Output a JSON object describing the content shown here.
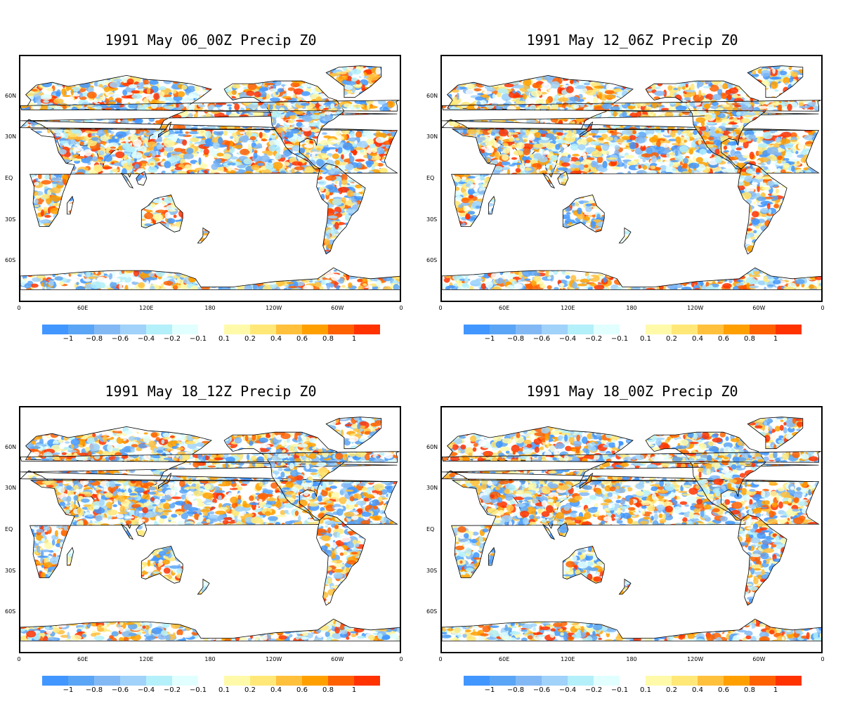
{
  "panels": [
    {
      "title": "1991 May 06_00Z Precip Z0"
    },
    {
      "title": "1991 May 12_06Z Precip Z0"
    },
    {
      "title": "1991 May 18_12Z Precip Z0"
    },
    {
      "title": "1991 May 18_00Z Precip Z0"
    }
  ],
  "lat_labels": [
    "60N",
    "30N",
    "EQ",
    "30S",
    "60S"
  ],
  "lon_labels": [
    "0",
    "60E",
    "120E",
    "180",
    "120W",
    "60W",
    "0"
  ],
  "colorbar": {
    "colors": [
      "#4196ff",
      "#5aa5f5",
      "#82b9f5",
      "#a0d2fa",
      "#b4f0fa",
      "#e1ffff",
      "#ffffff",
      "#fffaaa",
      "#ffe878",
      "#ffc03c",
      "#ffa000",
      "#ff6000",
      "#ff3200"
    ],
    "labels": [
      "-1",
      "-0.8",
      "-0.6",
      "-0.4",
      "-0.2",
      "-0.1",
      "0.1",
      "0.2",
      "0.4",
      "0.6",
      "0.8",
      "1"
    ]
  }
}
